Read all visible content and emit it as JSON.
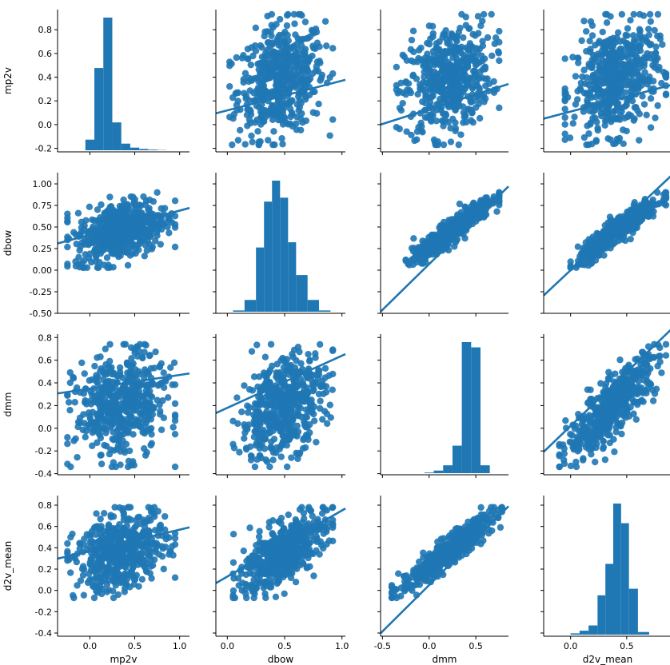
{
  "chart_data": {
    "type": "pairplot",
    "variables": [
      "mp2v",
      "dbow",
      "dmm",
      "d2v_mean"
    ],
    "color": "#1f77b4",
    "diagonal_type": "histogram",
    "off_diagonal_type": "scatter with regression line",
    "x_ticks": {
      "mp2v": [
        "0.0",
        "0.5",
        "1.0"
      ],
      "dbow": [
        "0.0",
        "0.5",
        "1.0"
      ],
      "dmm": [
        "-0.5",
        "0.0",
        "0.5"
      ],
      "d2v_mean": [
        "0.0",
        "0.5"
      ]
    },
    "y_ticks": {
      "mp2v": [
        "-0.2",
        "0.0",
        "0.2",
        "0.4",
        "0.6",
        "0.8"
      ],
      "dbow": [
        "-0.50",
        "-0.25",
        "0.00",
        "0.25",
        "0.50",
        "0.75",
        "1.00"
      ],
      "dmm": [
        "-0.4",
        "-0.2",
        "0.0",
        "0.2",
        "0.4",
        "0.6",
        "0.8"
      ],
      "d2v_mean": [
        "-0.4",
        "-0.2",
        "0.0",
        "0.2",
        "0.4",
        "0.6",
        "0.8"
      ]
    },
    "histograms": {
      "mp2v": {
        "bin_edges": [
          -0.05,
          0.05,
          0.15,
          0.25,
          0.35,
          0.45,
          0.55,
          0.65,
          0.75,
          0.85
        ],
        "relative_heights": [
          0.08,
          0.62,
          1.0,
          0.21,
          0.05,
          0.02,
          0.01,
          0.005,
          0.002
        ]
      },
      "dbow": {
        "bin_edges": [
          0.05,
          0.15,
          0.25,
          0.32,
          0.39,
          0.46,
          0.53,
          0.6,
          0.7,
          0.8,
          0.9
        ],
        "relative_heights": [
          0.01,
          0.09,
          0.49,
          0.84,
          1.0,
          0.87,
          0.53,
          0.28,
          0.09,
          0.01
        ]
      },
      "dmm": {
        "bin_edges": [
          -0.05,
          0.05,
          0.15,
          0.25,
          0.35,
          0.45,
          0.55,
          0.65
        ],
        "relative_heights": [
          0.005,
          0.02,
          0.06,
          0.21,
          1.0,
          0.96,
          0.06
        ]
      },
      "d2v_mean": {
        "bin_edges": [
          0.0,
          0.08,
          0.16,
          0.24,
          0.31,
          0.38,
          0.45,
          0.52,
          0.6,
          0.7
        ],
        "relative_heights": [
          0.01,
          0.03,
          0.07,
          0.3,
          0.54,
          1.0,
          0.85,
          0.35,
          0.02
        ]
      }
    },
    "panels": [
      {
        "row": "mp2v",
        "col": "dbow",
        "x_range": [
          0.02,
          0.92
        ],
        "y_range": [
          -0.17,
          0.93
        ],
        "regression": {
          "slope": 0.25,
          "intercept": 0.12
        }
      },
      {
        "row": "mp2v",
        "col": "dmm",
        "x_range": [
          -0.35,
          0.75
        ],
        "y_range": [
          -0.17,
          0.93
        ],
        "regression": {
          "slope": 0.25,
          "intercept": 0.13
        }
      },
      {
        "row": "mp2v",
        "col": "d2v_mean",
        "x_range": [
          -0.05,
          0.85
        ],
        "y_range": [
          -0.17,
          0.93
        ],
        "regression": {
          "slope": 0.25,
          "intercept": 0.11
        }
      },
      {
        "row": "dbow",
        "col": "mp2v",
        "x_range": [
          -0.25,
          0.95
        ],
        "y_range": [
          0.03,
          0.9
        ],
        "regression": {
          "slope": 0.28,
          "intercept": 0.41
        }
      },
      {
        "row": "dbow",
        "col": "dmm",
        "x_range": [
          -0.25,
          0.75
        ],
        "y_range": [
          0.03,
          0.9
        ],
        "regression": {
          "slope": 1.06,
          "intercept": 0.07
        }
      },
      {
        "row": "dbow",
        "col": "d2v_mean",
        "x_range": [
          0.0,
          0.85
        ],
        "y_range": [
          0.03,
          0.9
        ],
        "regression": {
          "slope": 1.22,
          "intercept": 0.0
        }
      },
      {
        "row": "dmm",
        "col": "mp2v",
        "x_range": [
          -0.25,
          0.95
        ],
        "y_range": [
          -0.34,
          0.74
        ],
        "regression": {
          "slope": 0.12,
          "intercept": 0.35
        }
      },
      {
        "row": "dmm",
        "col": "dbow",
        "x_range": [
          0.05,
          0.92
        ],
        "y_range": [
          -0.34,
          0.74
        ],
        "regression": {
          "slope": 0.46,
          "intercept": 0.18
        }
      },
      {
        "row": "dmm",
        "col": "d2v_mean",
        "x_range": [
          -0.1,
          0.85
        ],
        "y_range": [
          -0.34,
          0.74
        ],
        "regression": {
          "slope": 0.95,
          "intercept": 0.02
        }
      },
      {
        "row": "d2v_mean",
        "col": "mp2v",
        "x_range": [
          -0.25,
          0.95
        ],
        "y_range": [
          -0.07,
          0.78
        ],
        "regression": {
          "slope": 0.2,
          "intercept": 0.37
        }
      },
      {
        "row": "d2v_mean",
        "col": "dbow",
        "x_range": [
          0.05,
          0.92
        ],
        "y_range": [
          -0.07,
          0.78
        ],
        "regression": {
          "slope": 0.62,
          "intercept": 0.13
        }
      },
      {
        "row": "d2v_mean",
        "col": "dmm",
        "x_range": [
          -0.4,
          0.78
        ],
        "y_range": [
          -0.07,
          0.78
        ],
        "regression": {
          "slope": 0.87,
          "intercept": 0.05
        }
      }
    ]
  }
}
